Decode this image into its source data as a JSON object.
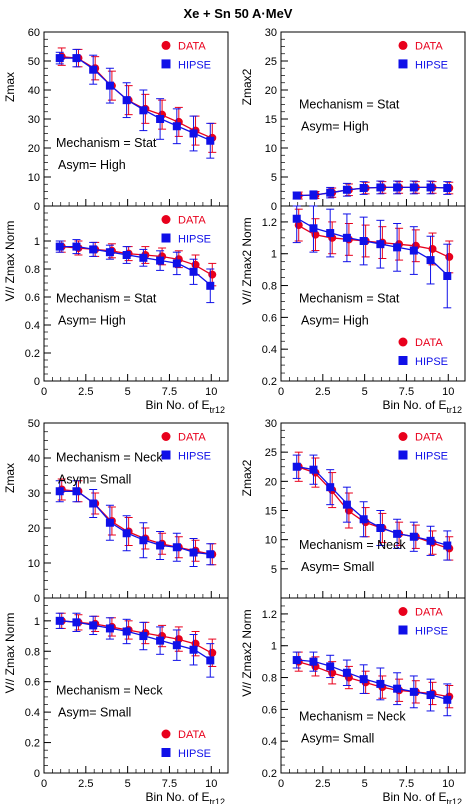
{
  "figure_title": "Xe + Sn 50 A·MeV",
  "colors": {
    "data": "#e8001c",
    "hipse": "#1010e8",
    "axis": "#000000"
  },
  "legend_labels": {
    "data": "DATA",
    "hipse": "HIPSE"
  },
  "x_axis": {
    "label_main": "Bin No. of E",
    "label_sub": "tr12",
    "range": [
      0,
      11
    ],
    "tick_labels": [
      "0",
      "2.5",
      "5",
      "7.5",
      "10"
    ]
  },
  "chart_data": [
    {
      "type": "scatter",
      "panel": "top-left",
      "ylabel": "Zmax",
      "ylim": [
        0,
        60
      ],
      "y_tick_labels": [
        "0",
        "10",
        "20",
        "30",
        "40",
        "50",
        "60"
      ],
      "annotation": [
        "Mechanism = Stat",
        "Asym= High"
      ],
      "legend_placement": "top-right",
      "series": [
        {
          "name": "DATA",
          "x": [
            1,
            2,
            3,
            4,
            5,
            6,
            7,
            8,
            9,
            10
          ],
          "y": [
            51.5,
            51,
            47.5,
            41.5,
            36.5,
            33.5,
            31.5,
            29,
            26,
            23.5
          ],
          "err": [
            3,
            3,
            4,
            5,
            5,
            5,
            5,
            5,
            5,
            5
          ]
        },
        {
          "name": "HIPSE",
          "x": [
            1,
            2,
            3,
            4,
            5,
            6,
            7,
            8,
            9,
            10
          ],
          "y": [
            51,
            51,
            47,
            41.5,
            36.5,
            33,
            30,
            27.5,
            25,
            22.5
          ],
          "err": [
            2,
            3,
            5,
            6,
            6,
            7,
            7,
            6,
            6,
            6
          ]
        }
      ]
    },
    {
      "type": "scatter",
      "panel": "top-right",
      "ylabel": "Zmax2",
      "ylim": [
        0,
        30
      ],
      "y_tick_labels": [
        "0",
        "5",
        "10",
        "15",
        "20",
        "25",
        "30"
      ],
      "annotation": [
        "Mechanism = Stat",
        "Asym= High"
      ],
      "legend_placement": "top-right",
      "series": [
        {
          "name": "DATA",
          "x": [
            1,
            2,
            3,
            4,
            5,
            6,
            7,
            8,
            9,
            10
          ],
          "y": [
            1.8,
            1.9,
            2.3,
            2.8,
            3.1,
            3.2,
            3.2,
            3.2,
            3.2,
            3.1
          ],
          "err": [
            0.6,
            0.6,
            0.8,
            1,
            1,
            1,
            1,
            1,
            1,
            1
          ]
        },
        {
          "name": "HIPSE",
          "x": [
            1,
            2,
            3,
            4,
            5,
            6,
            7,
            8,
            9,
            10
          ],
          "y": [
            1.8,
            1.9,
            2.3,
            2.8,
            3.1,
            3.2,
            3.2,
            3.2,
            3.2,
            3.1
          ],
          "err": [
            0.6,
            0.7,
            0.9,
            1.1,
            1.1,
            1.1,
            1.1,
            1.1,
            1.1,
            1.1
          ]
        }
      ]
    },
    {
      "type": "scatter",
      "panel": "upper-left-ratio",
      "ylabel": "V// Zmax Norm",
      "ylim": [
        0,
        1.25
      ],
      "y_tick_labels": [
        "0",
        "0.2",
        "0.4",
        "0.6",
        "0.8",
        "1"
      ],
      "annotation": [
        "Mechanism = Stat",
        "Asym= High"
      ],
      "legend_placement": "top-right",
      "series": [
        {
          "name": "DATA",
          "x": [
            1,
            2,
            3,
            4,
            5,
            6,
            7,
            8,
            9,
            10
          ],
          "y": [
            0.96,
            0.95,
            0.94,
            0.93,
            0.91,
            0.9,
            0.89,
            0.87,
            0.83,
            0.76
          ],
          "err": [
            0.04,
            0.05,
            0.05,
            0.05,
            0.05,
            0.06,
            0.06,
            0.06,
            0.07,
            0.08
          ]
        },
        {
          "name": "HIPSE",
          "x": [
            1,
            2,
            3,
            4,
            5,
            6,
            7,
            8,
            9,
            10
          ],
          "y": [
            0.96,
            0.96,
            0.94,
            0.92,
            0.9,
            0.88,
            0.86,
            0.84,
            0.78,
            0.68
          ],
          "err": [
            0.04,
            0.05,
            0.05,
            0.05,
            0.06,
            0.06,
            0.07,
            0.08,
            0.09,
            0.12
          ]
        }
      ]
    },
    {
      "type": "scatter",
      "panel": "upper-right-ratio",
      "ylabel": "V// Zmax2 Norm",
      "ylim": [
        0.2,
        1.3
      ],
      "y_tick_labels": [
        "0.2",
        "0.4",
        "0.6",
        "0.8",
        "1",
        "1.2"
      ],
      "annotation": [
        "Mechanism = Stat",
        "Asym= High"
      ],
      "legend_placement": "bottom-right",
      "series": [
        {
          "name": "DATA",
          "x": [
            1,
            2,
            3,
            4,
            5,
            6,
            7,
            8,
            9,
            10
          ],
          "y": [
            1.18,
            1.12,
            1.1,
            1.09,
            1.08,
            1.07,
            1.06,
            1.05,
            1.03,
            0.98
          ],
          "err": [
            0.1,
            0.1,
            0.1,
            0.1,
            0.1,
            0.1,
            0.1,
            0.1,
            0.1,
            0.1
          ]
        },
        {
          "name": "HIPSE",
          "x": [
            1,
            2,
            3,
            4,
            5,
            6,
            7,
            8,
            9,
            10
          ],
          "y": [
            1.22,
            1.16,
            1.13,
            1.1,
            1.08,
            1.06,
            1.04,
            1.02,
            0.96,
            0.86
          ],
          "err": [
            0.15,
            0.15,
            0.15,
            0.15,
            0.15,
            0.15,
            0.15,
            0.15,
            0.15,
            0.2
          ]
        }
      ]
    },
    {
      "type": "scatter",
      "panel": "bottom-left",
      "ylabel": "Zmax",
      "ylim": [
        0,
        50
      ],
      "y_tick_labels": [
        "0",
        "10",
        "20",
        "30",
        "40",
        "50"
      ],
      "annotation": [
        "Mechanism = Neck",
        "Asym= Small"
      ],
      "legend_placement": "top-right",
      "series": [
        {
          "name": "DATA",
          "x": [
            1,
            2,
            3,
            4,
            5,
            6,
            7,
            8,
            9,
            10
          ],
          "y": [
            31,
            30.5,
            27,
            22,
            19,
            17,
            15.5,
            14.5,
            13.5,
            12.5
          ],
          "err": [
            3,
            3,
            3,
            4,
            4,
            3,
            3,
            3,
            3,
            3
          ]
        },
        {
          "name": "HIPSE",
          "x": [
            1,
            2,
            3,
            4,
            5,
            6,
            7,
            8,
            9,
            10
          ],
          "y": [
            30.5,
            30.5,
            27,
            21.5,
            18.5,
            16.5,
            15,
            14.5,
            13,
            12.5
          ],
          "err": [
            3,
            3,
            4,
            5,
            5,
            5,
            4,
            4,
            4,
            3
          ]
        }
      ]
    },
    {
      "type": "scatter",
      "panel": "bottom-right",
      "ylabel": "Zmax2",
      "ylim": [
        0,
        30
      ],
      "y_tick_labels": [
        "5",
        "10",
        "15",
        "20",
        "25",
        "30"
      ],
      "annotation": [
        "Mechanism = Neck",
        "Asym= Small"
      ],
      "legend_placement": "top-right",
      "series": [
        {
          "name": "DATA",
          "x": [
            1,
            2,
            3,
            4,
            5,
            6,
            7,
            8,
            9,
            10
          ],
          "y": [
            22.5,
            21.5,
            18.5,
            15,
            13,
            12,
            11,
            10.5,
            9.5,
            8.5
          ],
          "err": [
            2.5,
            2.5,
            3,
            3,
            2.5,
            2.5,
            2,
            2,
            2,
            2
          ]
        },
        {
          "name": "HIPSE",
          "x": [
            1,
            2,
            3,
            4,
            5,
            6,
            7,
            8,
            9,
            10
          ],
          "y": [
            22.5,
            22,
            19,
            16,
            13.5,
            12,
            11,
            10.5,
            9.8,
            9
          ],
          "err": [
            2,
            2.5,
            3,
            3,
            3,
            3,
            2.5,
            2.5,
            2.5,
            2.5
          ]
        }
      ]
    },
    {
      "type": "scatter",
      "panel": "lower-left-ratio",
      "ylabel": "V// Zmax Norm",
      "ylim": [
        0,
        1.15
      ],
      "y_tick_labels": [
        "0",
        "0.2",
        "0.4",
        "0.6",
        "0.8",
        "1"
      ],
      "annotation": [
        "Mechanism = Neck",
        "Asym= Small"
      ],
      "legend_placement": "bottom-right",
      "series": [
        {
          "name": "DATA",
          "x": [
            1,
            2,
            3,
            4,
            5,
            6,
            7,
            8,
            9,
            10
          ],
          "y": [
            1.0,
            0.99,
            0.98,
            0.96,
            0.94,
            0.92,
            0.9,
            0.88,
            0.85,
            0.79
          ],
          "err": [
            0.05,
            0.05,
            0.05,
            0.06,
            0.06,
            0.07,
            0.07,
            0.08,
            0.08,
            0.09
          ]
        },
        {
          "name": "HIPSE",
          "x": [
            1,
            2,
            3,
            4,
            5,
            6,
            7,
            8,
            9,
            10
          ],
          "y": [
            1.0,
            0.99,
            0.97,
            0.95,
            0.93,
            0.9,
            0.87,
            0.84,
            0.81,
            0.74
          ],
          "err": [
            0.05,
            0.06,
            0.06,
            0.07,
            0.08,
            0.09,
            0.09,
            0.1,
            0.1,
            0.11
          ]
        }
      ]
    },
    {
      "type": "scatter",
      "panel": "lower-right-ratio",
      "ylabel": "V// Zmax2 Norm",
      "ylim": [
        0.2,
        1.3
      ],
      "y_tick_labels": [
        "0.2",
        "0.4",
        "0.6",
        "0.8",
        "1",
        "1.2"
      ],
      "annotation": [
        "Mechanism = Neck",
        "Asym= Small"
      ],
      "legend_placement": "top-right",
      "series": [
        {
          "name": "DATA",
          "x": [
            1,
            2,
            3,
            4,
            5,
            6,
            7,
            8,
            9,
            10
          ],
          "y": [
            0.9,
            0.87,
            0.83,
            0.8,
            0.77,
            0.74,
            0.72,
            0.71,
            0.7,
            0.68
          ],
          "err": [
            0.06,
            0.06,
            0.07,
            0.07,
            0.07,
            0.07,
            0.07,
            0.07,
            0.07,
            0.07
          ]
        },
        {
          "name": "HIPSE",
          "x": [
            1,
            2,
            3,
            4,
            5,
            6,
            7,
            8,
            9,
            10
          ],
          "y": [
            0.91,
            0.9,
            0.87,
            0.83,
            0.79,
            0.76,
            0.73,
            0.71,
            0.69,
            0.66
          ],
          "err": [
            0.05,
            0.06,
            0.07,
            0.08,
            0.09,
            0.1,
            0.1,
            0.1,
            0.1,
            0.1
          ]
        }
      ]
    }
  ]
}
